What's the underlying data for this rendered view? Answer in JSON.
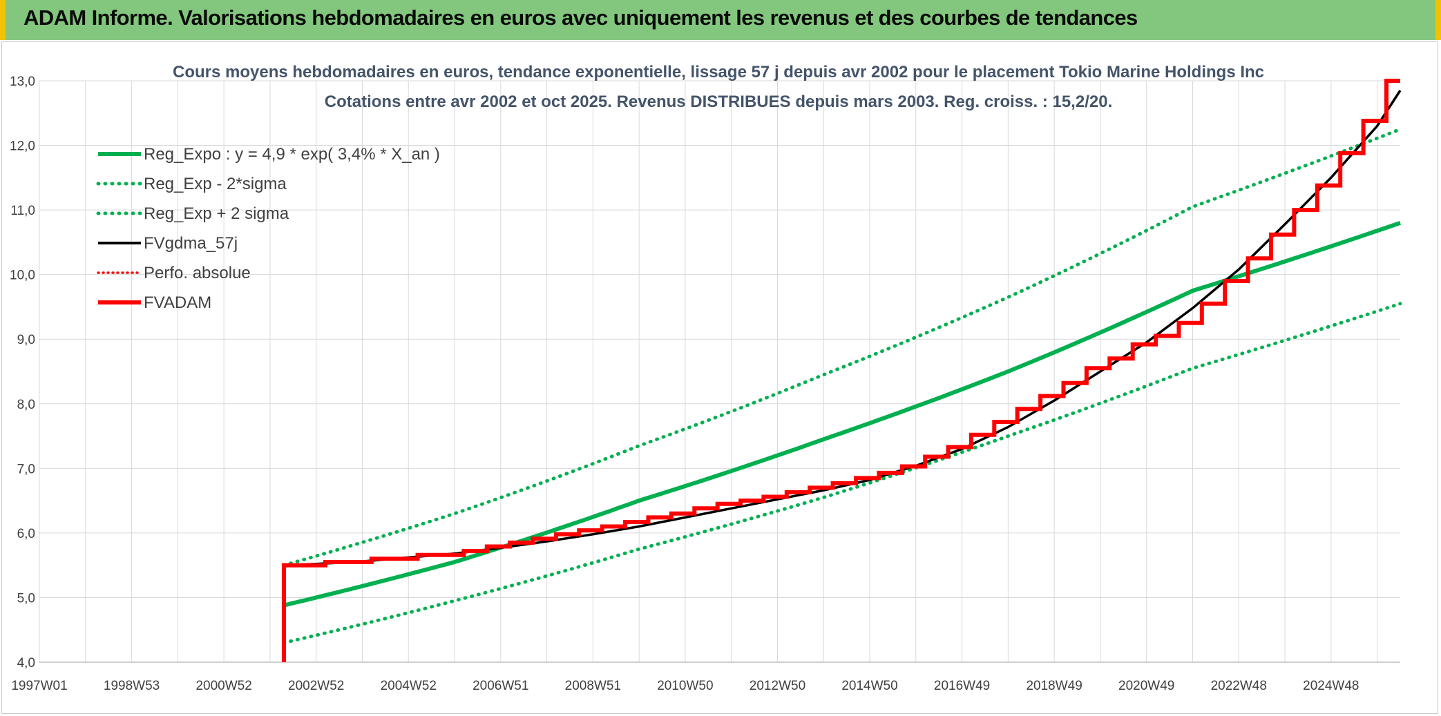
{
  "header": {
    "title": "ADAM Informe. Valorisations hebdomadaires en euros avec uniquement les revenus et des courbes de tendances"
  },
  "colors": {
    "banner": "#82c77d",
    "green": "#00b050",
    "black": "#000000",
    "red": "#ff0000",
    "grid": "#d9d9d9",
    "text": "#404040",
    "title_text": "#44546a"
  },
  "chart_data": {
    "type": "line",
    "title": "Cours moyens hebdomadaires en euros, tendance exponentielle, lissage 57 j depuis avr 2002 pour le placement Tokio Marine Holdings Inc",
    "subtitle": "Cotations entre avr 2002 et oct 2025. Revenus DISTRIBUES depuis mars 2003. Reg. croiss. : 15,2/20.",
    "x_axis": {
      "unit": "year",
      "range": [
        1997.0,
        2026.5
      ],
      "ticks": [
        1997.0,
        1999.0,
        2001.0,
        2003.0,
        2005.0,
        2007.0,
        2009.0,
        2011.0,
        2013.0,
        2015.0,
        2017.0,
        2019.0,
        2021.0,
        2023.0,
        2025.0
      ],
      "tick_labels": [
        "1997W01",
        "1998W53",
        "2000W52",
        "2002W52",
        "2004W52",
        "2006W51",
        "2008W51",
        "2010W50",
        "2012W50",
        "2014W50",
        "2016W49",
        "2018W49",
        "2020W49",
        "2022W48",
        "2024W48"
      ]
    },
    "y_axis": {
      "range": [
        4.0,
        13.0
      ],
      "ticks": [
        4.0,
        5.0,
        6.0,
        7.0,
        8.0,
        9.0,
        10.0,
        11.0,
        12.0,
        13.0
      ],
      "tick_labels": [
        "4,0",
        "5,0",
        "6,0",
        "7,0",
        "8,0",
        "9,0",
        "10,0",
        "11,0",
        "12,0",
        "13,0"
      ]
    },
    "legend": {
      "position": "top-left",
      "entries": [
        {
          "label": "Reg_Expo : y = 4,9 * exp( 3,4% *  X_an )",
          "style": "solid-green-thick"
        },
        {
          "label": "Reg_Exp - 2*sigma",
          "style": "dotted-green"
        },
        {
          "label": "Reg_Exp + 2 sigma",
          "style": "dotted-green"
        },
        {
          "label": "FVgdma_57j",
          "style": "solid-black"
        },
        {
          "label": "Perfo. absolue",
          "style": "dotted-red"
        },
        {
          "label": "FVADAM",
          "style": "solid-red-thick"
        }
      ]
    },
    "series": [
      {
        "name": "Reg_Expo : y = 4,9 * exp( 3,4% *  X_an )",
        "x": [
          2002.3,
          2006.0,
          2010.0,
          2014.0,
          2018.0,
          2022.0,
          2026.5
        ],
        "values": [
          4.88,
          5.55,
          6.5,
          7.45,
          8.5,
          9.75,
          10.8
        ]
      },
      {
        "name": "Reg_Exp - 2*sigma",
        "x": [
          2002.3,
          2006.0,
          2010.0,
          2014.0,
          2018.0,
          2022.0,
          2026.5
        ],
        "values": [
          4.3,
          4.95,
          5.75,
          6.55,
          7.5,
          8.55,
          9.55
        ]
      },
      {
        "name": "Reg_Exp + 2 sigma",
        "x": [
          2002.3,
          2006.0,
          2010.0,
          2014.0,
          2018.0,
          2022.0,
          2026.5
        ],
        "values": [
          5.5,
          6.3,
          7.35,
          8.45,
          9.65,
          11.05,
          12.25
        ]
      },
      {
        "name": "FVgdma_57j",
        "x": [
          2002.3,
          2003.0,
          2004.0,
          2005.0,
          2006.0,
          2007.0,
          2008.0,
          2009.0,
          2010.0,
          2011.0,
          2012.0,
          2013.0,
          2014.0,
          2015.0,
          2016.0,
          2017.0,
          2018.0,
          2019.0,
          2020.0,
          2021.0,
          2022.0,
          2023.0,
          2024.0,
          2025.0,
          2026.0,
          2026.5
        ],
        "values": [
          5.5,
          5.52,
          5.56,
          5.62,
          5.68,
          5.77,
          5.87,
          5.98,
          6.1,
          6.24,
          6.38,
          6.52,
          6.66,
          6.82,
          7.04,
          7.3,
          7.64,
          8.05,
          8.5,
          8.95,
          9.48,
          10.08,
          10.78,
          11.5,
          12.3,
          12.85
        ]
      },
      {
        "name": "FVADAM",
        "style": "step",
        "start": {
          "x": 2002.3,
          "from": 4.0,
          "to": 5.5
        },
        "x": [
          2002.3,
          2003.2,
          2004.2,
          2005.2,
          2006.2,
          2006.7,
          2007.2,
          2007.7,
          2008.2,
          2008.7,
          2009.2,
          2009.7,
          2010.2,
          2010.7,
          2011.2,
          2011.7,
          2012.2,
          2012.7,
          2013.2,
          2013.7,
          2014.2,
          2014.7,
          2015.2,
          2015.7,
          2016.2,
          2016.7,
          2017.2,
          2017.7,
          2018.2,
          2018.7,
          2019.2,
          2019.7,
          2020.2,
          2020.7,
          2021.2,
          2021.7,
          2022.2,
          2022.7,
          2023.2,
          2023.7,
          2024.2,
          2024.7,
          2025.2,
          2025.7,
          2026.2,
          2026.5
        ],
        "values": [
          5.5,
          5.55,
          5.6,
          5.66,
          5.72,
          5.79,
          5.85,
          5.91,
          5.98,
          6.04,
          6.1,
          6.17,
          6.24,
          6.3,
          6.38,
          6.45,
          6.5,
          6.56,
          6.63,
          6.7,
          6.77,
          6.85,
          6.93,
          7.03,
          7.18,
          7.33,
          7.52,
          7.72,
          7.92,
          8.12,
          8.32,
          8.55,
          8.7,
          8.92,
          9.05,
          9.25,
          9.55,
          9.9,
          10.25,
          10.62,
          11.0,
          11.38,
          11.88,
          12.38,
          13.0,
          13.0
        ]
      }
    ]
  }
}
